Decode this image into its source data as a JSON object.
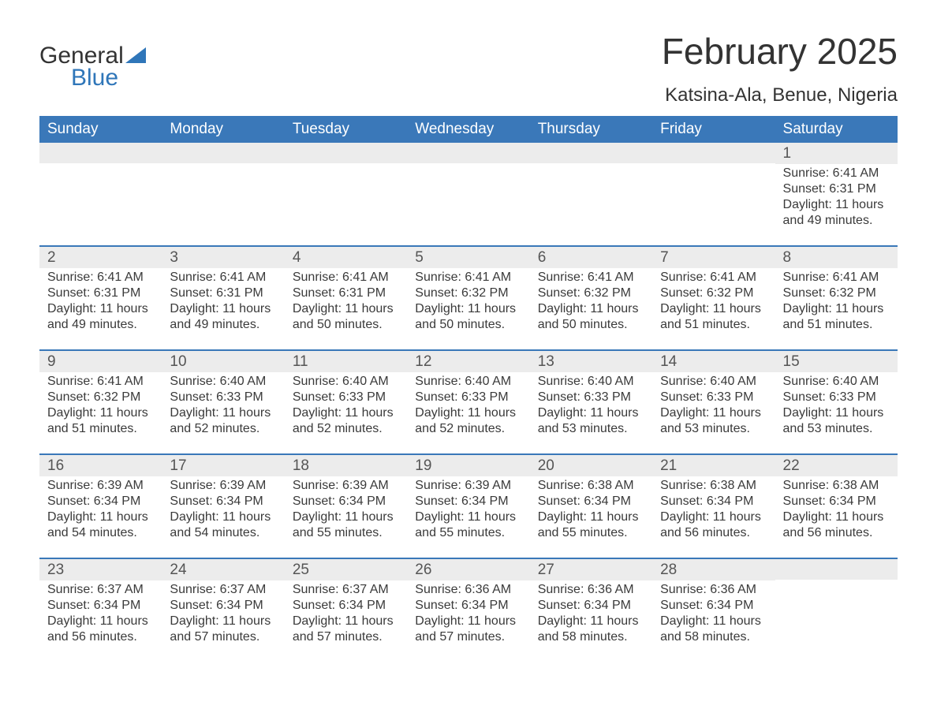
{
  "brand": {
    "word1": "General",
    "word2": "Blue"
  },
  "colors": {
    "accent": "#3a78b9",
    "header_row_bg": "#3a78b9",
    "header_row_text": "#ffffff",
    "daynum_bg": "#ececec",
    "body_text": "#3a3a3a",
    "page_bg": "#ffffff"
  },
  "title": "February 2025",
  "subtitle": "Katsina-Ala, Benue, Nigeria",
  "day_headers": [
    "Sunday",
    "Monday",
    "Tuesday",
    "Wednesday",
    "Thursday",
    "Friday",
    "Saturday"
  ],
  "labels": {
    "sunrise": "Sunrise:",
    "sunset": "Sunset:",
    "daylight": "Daylight:"
  },
  "weeks": [
    [
      {
        "day": null
      },
      {
        "day": null
      },
      {
        "day": null
      },
      {
        "day": null
      },
      {
        "day": null
      },
      {
        "day": null
      },
      {
        "day": "1",
        "sunrise": "6:41 AM",
        "sunset": "6:31 PM",
        "daylight": "11 hours and 49 minutes."
      }
    ],
    [
      {
        "day": "2",
        "sunrise": "6:41 AM",
        "sunset": "6:31 PM",
        "daylight": "11 hours and 49 minutes."
      },
      {
        "day": "3",
        "sunrise": "6:41 AM",
        "sunset": "6:31 PM",
        "daylight": "11 hours and 49 minutes."
      },
      {
        "day": "4",
        "sunrise": "6:41 AM",
        "sunset": "6:31 PM",
        "daylight": "11 hours and 50 minutes."
      },
      {
        "day": "5",
        "sunrise": "6:41 AM",
        "sunset": "6:32 PM",
        "daylight": "11 hours and 50 minutes."
      },
      {
        "day": "6",
        "sunrise": "6:41 AM",
        "sunset": "6:32 PM",
        "daylight": "11 hours and 50 minutes."
      },
      {
        "day": "7",
        "sunrise": "6:41 AM",
        "sunset": "6:32 PM",
        "daylight": "11 hours and 51 minutes."
      },
      {
        "day": "8",
        "sunrise": "6:41 AM",
        "sunset": "6:32 PM",
        "daylight": "11 hours and 51 minutes."
      }
    ],
    [
      {
        "day": "9",
        "sunrise": "6:41 AM",
        "sunset": "6:32 PM",
        "daylight": "11 hours and 51 minutes."
      },
      {
        "day": "10",
        "sunrise": "6:40 AM",
        "sunset": "6:33 PM",
        "daylight": "11 hours and 52 minutes."
      },
      {
        "day": "11",
        "sunrise": "6:40 AM",
        "sunset": "6:33 PM",
        "daylight": "11 hours and 52 minutes."
      },
      {
        "day": "12",
        "sunrise": "6:40 AM",
        "sunset": "6:33 PM",
        "daylight": "11 hours and 52 minutes."
      },
      {
        "day": "13",
        "sunrise": "6:40 AM",
        "sunset": "6:33 PM",
        "daylight": "11 hours and 53 minutes."
      },
      {
        "day": "14",
        "sunrise": "6:40 AM",
        "sunset": "6:33 PM",
        "daylight": "11 hours and 53 minutes."
      },
      {
        "day": "15",
        "sunrise": "6:40 AM",
        "sunset": "6:33 PM",
        "daylight": "11 hours and 53 minutes."
      }
    ],
    [
      {
        "day": "16",
        "sunrise": "6:39 AM",
        "sunset": "6:34 PM",
        "daylight": "11 hours and 54 minutes."
      },
      {
        "day": "17",
        "sunrise": "6:39 AM",
        "sunset": "6:34 PM",
        "daylight": "11 hours and 54 minutes."
      },
      {
        "day": "18",
        "sunrise": "6:39 AM",
        "sunset": "6:34 PM",
        "daylight": "11 hours and 55 minutes."
      },
      {
        "day": "19",
        "sunrise": "6:39 AM",
        "sunset": "6:34 PM",
        "daylight": "11 hours and 55 minutes."
      },
      {
        "day": "20",
        "sunrise": "6:38 AM",
        "sunset": "6:34 PM",
        "daylight": "11 hours and 55 minutes."
      },
      {
        "day": "21",
        "sunrise": "6:38 AM",
        "sunset": "6:34 PM",
        "daylight": "11 hours and 56 minutes."
      },
      {
        "day": "22",
        "sunrise": "6:38 AM",
        "sunset": "6:34 PM",
        "daylight": "11 hours and 56 minutes."
      }
    ],
    [
      {
        "day": "23",
        "sunrise": "6:37 AM",
        "sunset": "6:34 PM",
        "daylight": "11 hours and 56 minutes."
      },
      {
        "day": "24",
        "sunrise": "6:37 AM",
        "sunset": "6:34 PM",
        "daylight": "11 hours and 57 minutes."
      },
      {
        "day": "25",
        "sunrise": "6:37 AM",
        "sunset": "6:34 PM",
        "daylight": "11 hours and 57 minutes."
      },
      {
        "day": "26",
        "sunrise": "6:36 AM",
        "sunset": "6:34 PM",
        "daylight": "11 hours and 57 minutes."
      },
      {
        "day": "27",
        "sunrise": "6:36 AM",
        "sunset": "6:34 PM",
        "daylight": "11 hours and 58 minutes."
      },
      {
        "day": "28",
        "sunrise": "6:36 AM",
        "sunset": "6:34 PM",
        "daylight": "11 hours and 58 minutes."
      },
      {
        "day": null
      }
    ]
  ],
  "typography": {
    "title_fontsize": 46,
    "subtitle_fontsize": 24,
    "dayheader_fontsize": 19,
    "daynum_fontsize": 19,
    "body_fontsize": 16
  }
}
